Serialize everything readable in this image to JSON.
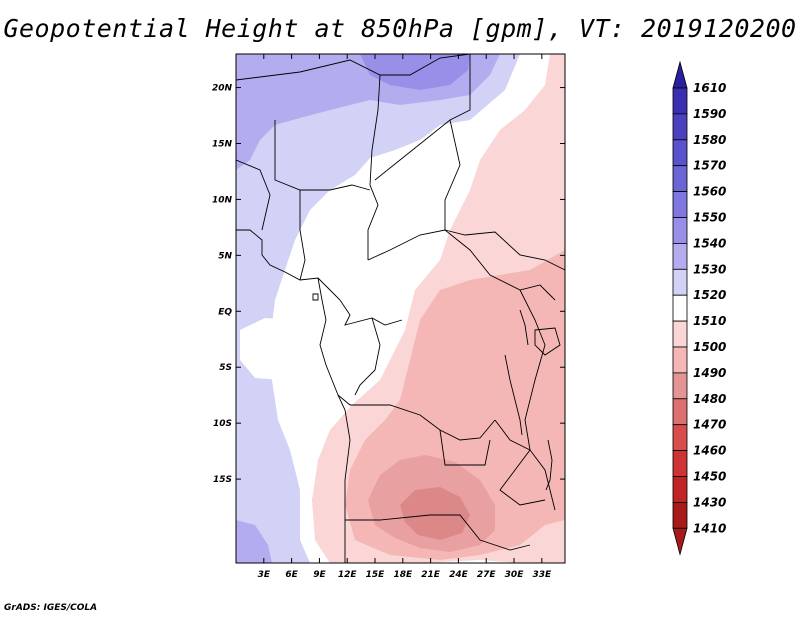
{
  "title": "Geopotential Height at 850hPa [gpm], VT: 2019120200",
  "credit": "GrADS: IGES/COLA",
  "map": {
    "lon_range": [
      0,
      35.5
    ],
    "lat_range": [
      -22.5,
      23
    ],
    "lon_ticks": [
      {
        "value": 3,
        "label": "3E"
      },
      {
        "value": 6,
        "label": "6E"
      },
      {
        "value": 9,
        "label": "9E"
      },
      {
        "value": 12,
        "label": "12E"
      },
      {
        "value": 15,
        "label": "15E"
      },
      {
        "value": 18,
        "label": "18E"
      },
      {
        "value": 21,
        "label": "21E"
      },
      {
        "value": 24,
        "label": "24E"
      },
      {
        "value": 27,
        "label": "27E"
      },
      {
        "value": 30,
        "label": "30E"
      },
      {
        "value": 33,
        "label": "33E"
      }
    ],
    "lat_ticks": [
      {
        "value": 20,
        "label": "20N"
      },
      {
        "value": 15,
        "label": "15N"
      },
      {
        "value": 10,
        "label": "10N"
      },
      {
        "value": 5,
        "label": "5N"
      },
      {
        "value": 0,
        "label": "EQ"
      },
      {
        "value": -5,
        "label": "5S"
      },
      {
        "value": -10,
        "label": "10S"
      },
      {
        "value": -15,
        "label": "15S"
      }
    ]
  },
  "colorbar": {
    "levels": [
      {
        "value": "1610",
        "color": "#2a1f9e"
      },
      {
        "value": "1590",
        "color": "#3a2fb0"
      },
      {
        "value": "1580",
        "color": "#4a40c0"
      },
      {
        "value": "1570",
        "color": "#5a52cc"
      },
      {
        "value": "1560",
        "color": "#6c65d6"
      },
      {
        "value": "1550",
        "color": "#8078e0"
      },
      {
        "value": "1540",
        "color": "#978fe8"
      },
      {
        "value": "1530",
        "color": "#b3adf0"
      },
      {
        "value": "1520",
        "color": "#d2d1f6"
      },
      {
        "value": "1510",
        "color": "#ffffff"
      },
      {
        "value": "1500",
        "color": "#fad6d6"
      },
      {
        "value": "1490",
        "color": "#f5b6b6"
      },
      {
        "value": "1480",
        "color": "#e39494"
      },
      {
        "value": "1470",
        "color": "#dc7070"
      },
      {
        "value": "1460",
        "color": "#d84c4c"
      },
      {
        "value": "1450",
        "color": "#cf3434"
      },
      {
        "value": "1430",
        "color": "#c02424"
      },
      {
        "value": "1410",
        "color": "#a81a1a"
      }
    ]
  }
}
